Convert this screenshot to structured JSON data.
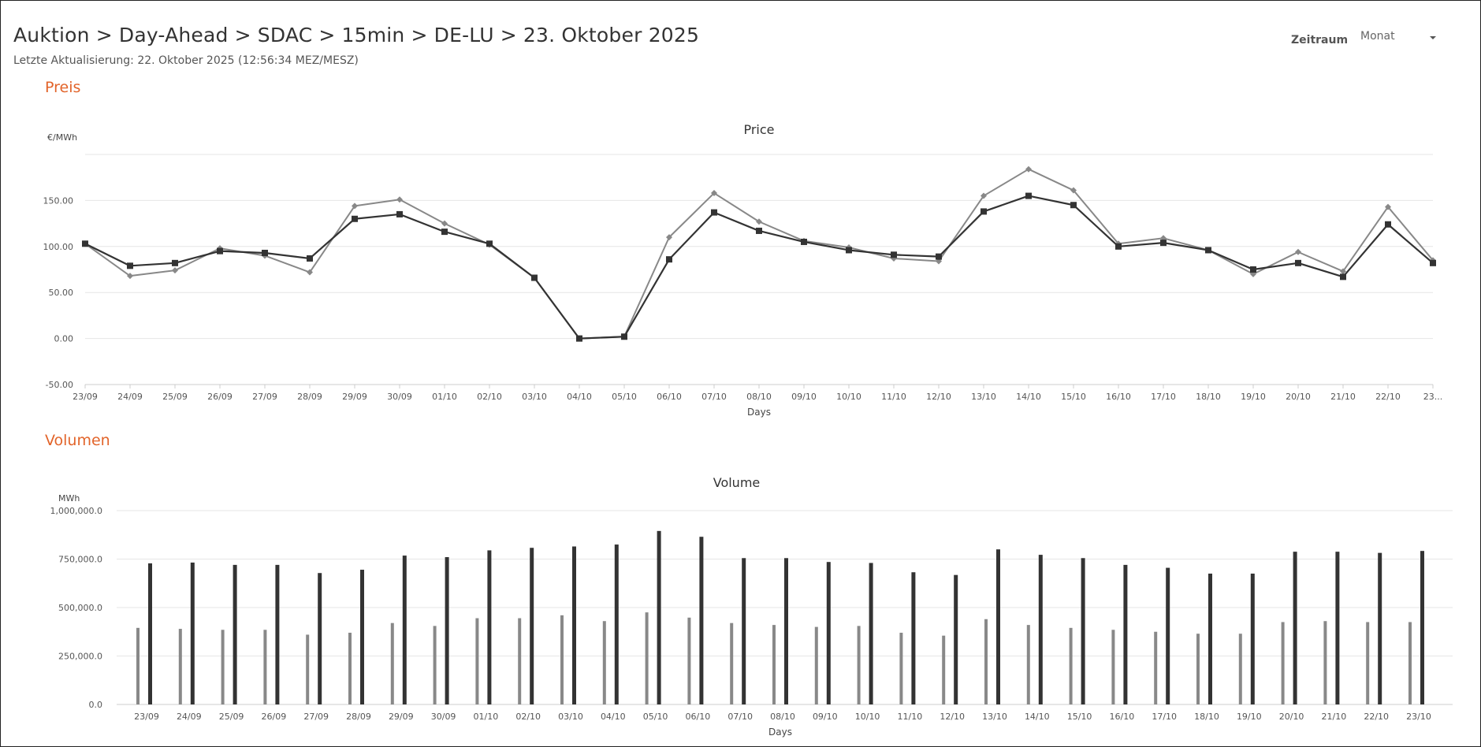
{
  "breadcrumb": [
    "Auktion",
    "Day-Ahead",
    "SDAC",
    "15min",
    "DE-LU",
    "23. Oktober 2025"
  ],
  "breadcrumb_sep": ">",
  "last_update": "Letzte Aktualisierung: 22. Oktober 2025 (12:56:34 MEZ/MESZ)",
  "controls": {
    "period_label": "Zeitraum",
    "period_value": "Monat"
  },
  "sections": {
    "price": "Preis",
    "volume": "Volumen"
  },
  "colors": {
    "accent": "#e2642a",
    "series_dark": "#333333",
    "series_gray": "#888888"
  },
  "chart_data": [
    {
      "type": "line",
      "title": "Price",
      "ylabel": "€/MWh",
      "xlabel": "Days",
      "ylim": [
        -50,
        200
      ],
      "yticks": [
        -50,
        0,
        50,
        100,
        150
      ],
      "ytick_labels": [
        "-50.00",
        "0.00",
        "50.00",
        "100.00",
        "150.00"
      ],
      "grid": true,
      "categories": [
        "23/09",
        "24/09",
        "25/09",
        "26/09",
        "27/09",
        "28/09",
        "29/09",
        "30/09",
        "01/10",
        "02/10",
        "03/10",
        "04/10",
        "05/10",
        "06/10",
        "07/10",
        "08/10",
        "09/10",
        "10/10",
        "11/10",
        "12/10",
        "13/10",
        "14/10",
        "15/10",
        "16/10",
        "17/10",
        "18/10",
        "19/10",
        "20/10",
        "21/10",
        "22/10",
        "23..."
      ],
      "series": [
        {
          "marker": "diamond",
          "color": "#888888",
          "values": [
            103,
            68,
            74,
            98,
            90,
            72,
            144,
            151,
            125,
            102,
            66,
            0,
            2,
            110,
            158,
            127,
            106,
            99,
            87,
            84,
            155,
            184,
            161,
            103,
            109,
            96,
            70,
            94,
            73,
            143,
            85
          ]
        },
        {
          "marker": "square",
          "color": "#333333",
          "values": [
            103,
            79,
            82,
            95,
            93,
            87,
            130,
            135,
            116,
            103,
            66,
            0,
            2,
            86,
            137,
            117,
            105,
            96,
            91,
            89,
            138,
            155,
            145,
            100,
            104,
            96,
            75,
            82,
            67,
            124,
            82
          ]
        }
      ]
    },
    {
      "type": "bar",
      "title": "Volume",
      "ylabel": "MWh",
      "xlabel": "Days",
      "ylim": [
        0,
        1000000
      ],
      "yticks": [
        0,
        250000,
        500000,
        750000,
        1000000
      ],
      "ytick_labels": [
        "0.0",
        "250,000.0",
        "500,000.0",
        "750,000.0",
        "1,000,000.0"
      ],
      "grid": true,
      "categories": [
        "23/09",
        "24/09",
        "25/09",
        "26/09",
        "27/09",
        "28/09",
        "29/09",
        "30/09",
        "01/10",
        "02/10",
        "03/10",
        "04/10",
        "05/10",
        "06/10",
        "07/10",
        "08/10",
        "09/10",
        "10/10",
        "11/10",
        "12/10",
        "13/10",
        "14/10",
        "15/10",
        "16/10",
        "17/10",
        "18/10",
        "19/10",
        "20/10",
        "21/10",
        "22/10",
        "23/10"
      ],
      "series": [
        {
          "color": "#888888",
          "values": [
            395000,
            390000,
            385000,
            385000,
            360000,
            370000,
            420000,
            405000,
            445000,
            445000,
            460000,
            430000,
            475000,
            448000,
            420000,
            410000,
            400000,
            405000,
            370000,
            355000,
            440000,
            410000,
            395000,
            385000,
            375000,
            365000,
            365000,
            425000,
            430000,
            425000,
            425000
          ]
        },
        {
          "color": "#333333",
          "values": [
            728000,
            732000,
            720000,
            720000,
            678000,
            695000,
            768000,
            760000,
            795000,
            808000,
            815000,
            825000,
            895000,
            865000,
            755000,
            755000,
            735000,
            730000,
            682000,
            668000,
            800000,
            772000,
            755000,
            720000,
            705000,
            675000,
            675000,
            788000,
            788000,
            782000,
            792000
          ]
        }
      ]
    }
  ]
}
